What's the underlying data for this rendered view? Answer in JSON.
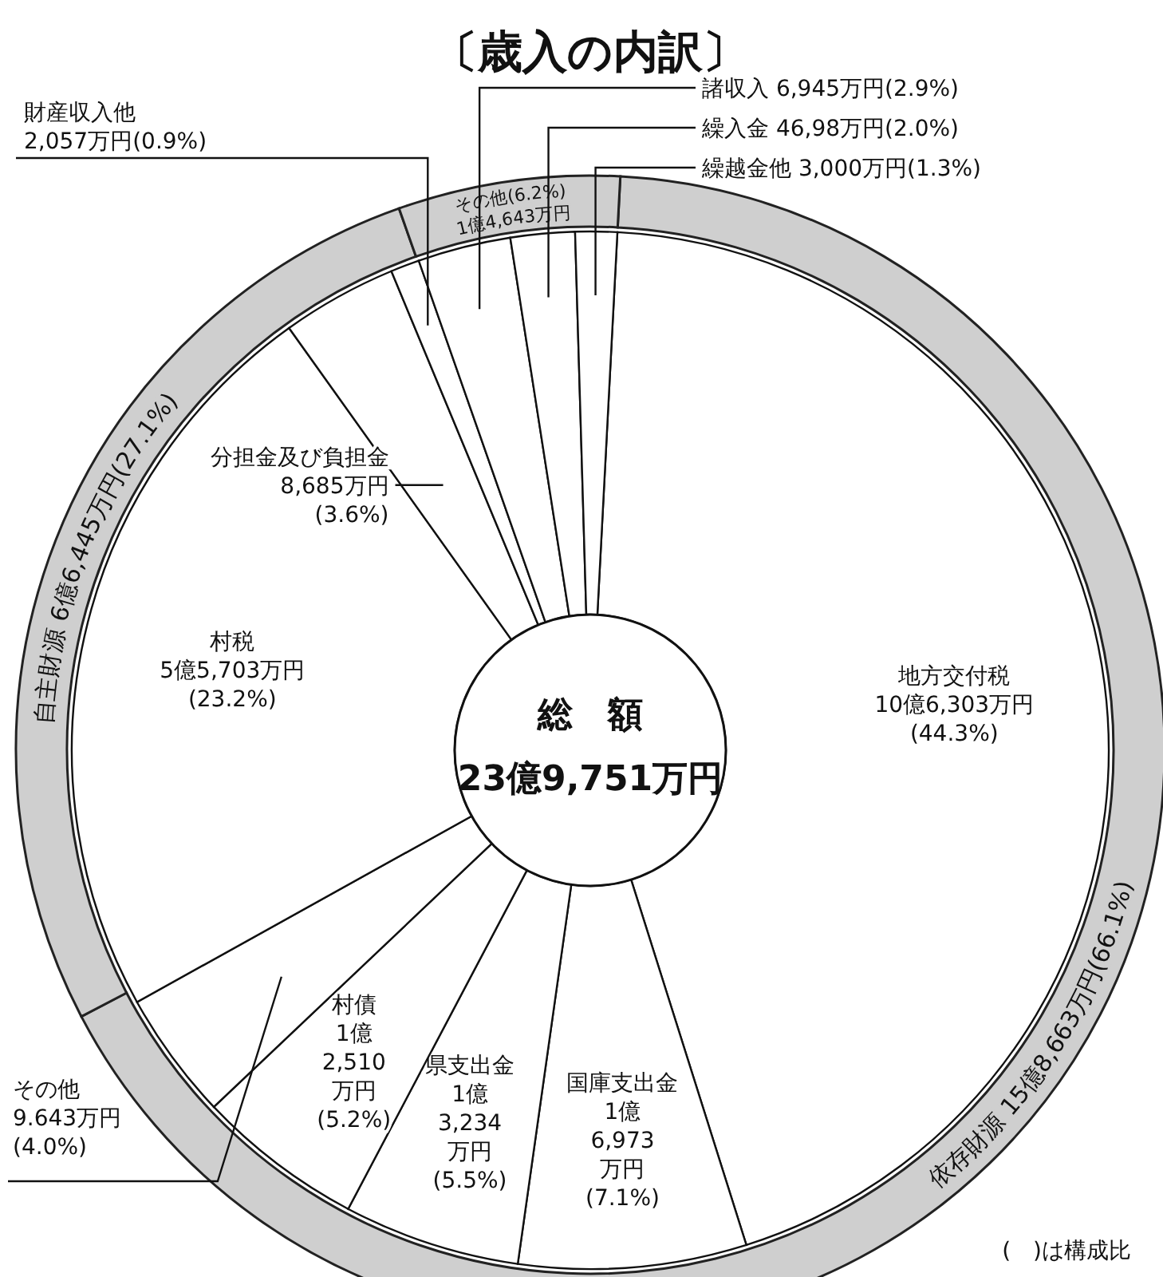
{
  "chart_data": [
    {
      "type": "donut",
      "title": "〔歳入の内訳〕",
      "categories": [
        "地方交付税",
        "国庫支出金",
        "県支出金",
        "村債",
        "その他",
        "村税",
        "分担金及び負担金",
        "財産収入他",
        "諸収入",
        "繰入金",
        "繰越金他"
      ],
      "values": [
        44.3,
        7.1,
        5.5,
        5.2,
        4.0,
        23.2,
        3.6,
        0.9,
        2.9,
        2.0,
        1.3
      ],
      "value_labels": [
        "10億6,303万円(44.3%)",
        "1億6,973万円(7.1%)",
        "1億3,234万円(5.5%)",
        "1億2,510万円(5.2%)",
        "9.643万円(4.0%)",
        "5億5,703万円(23.2%)",
        "8,685万円(3.6%)",
        "2,057万円(0.9%)",
        "6,945万円(2.9%)",
        "46,98万円(2.0%)",
        "3,000万円(1.3%)"
      ],
      "colors": [
        "#ffffff",
        "#ffffff",
        "#ffffff",
        "#ffffff",
        "#ffffff",
        "#ffffff",
        "#ffffff",
        "#ffffff",
        "#ffffff",
        "#ffffff",
        "#ffffff"
      ],
      "annotations": [
        "総　額",
        "23億9,751万円",
        "(　)は構成比"
      ]
    },
    {
      "type": "donut",
      "categories": [
        "依存財源 15億8,663万円(66.1%)",
        "自主財源 6億6,445万円(27.1%)",
        "その他(6.2%) 1億4,643万円"
      ],
      "values": [
        66.1,
        27.1,
        6.2
      ],
      "colors": [
        "#cfcfcf",
        "#cfcfcf",
        "#cfcfcf"
      ]
    }
  ]
}
